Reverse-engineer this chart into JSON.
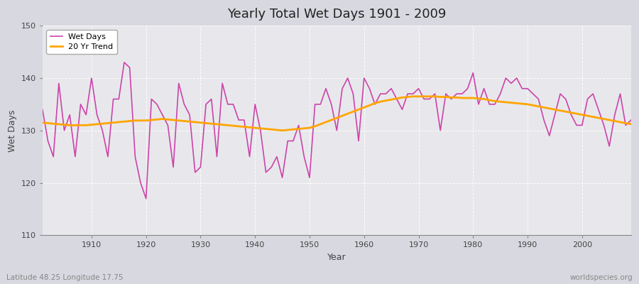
{
  "title": "Yearly Total Wet Days 1901 - 2009",
  "xlabel": "Year",
  "ylabel": "Wet Days",
  "subtitle_left": "Latitude 48.25 Longitude 17.75",
  "subtitle_right": "worldspecies.org",
  "ylim": [
    110,
    150
  ],
  "xlim": [
    1901,
    2009
  ],
  "yticks": [
    110,
    120,
    130,
    140,
    150
  ],
  "xticks": [
    1910,
    1920,
    1930,
    1940,
    1950,
    1960,
    1970,
    1980,
    1990,
    2000
  ],
  "wet_days_color": "#CC44AA",
  "trend_color": "#FFA500",
  "plot_bg_color": "#E8E8EC",
  "outer_bg_color": "#D8D8E0",
  "legend_labels": [
    "Wet Days",
    "20 Yr Trend"
  ],
  "years": [
    1901,
    1902,
    1903,
    1904,
    1905,
    1906,
    1907,
    1908,
    1909,
    1910,
    1911,
    1912,
    1913,
    1914,
    1915,
    1916,
    1917,
    1918,
    1919,
    1920,
    1921,
    1922,
    1923,
    1924,
    1925,
    1926,
    1927,
    1928,
    1929,
    1930,
    1931,
    1932,
    1933,
    1934,
    1935,
    1936,
    1937,
    1938,
    1939,
    1940,
    1941,
    1942,
    1943,
    1944,
    1945,
    1946,
    1947,
    1948,
    1949,
    1950,
    1951,
    1952,
    1953,
    1954,
    1955,
    1956,
    1957,
    1958,
    1959,
    1960,
    1961,
    1962,
    1963,
    1964,
    1965,
    1966,
    1967,
    1968,
    1969,
    1970,
    1971,
    1972,
    1973,
    1974,
    1975,
    1976,
    1977,
    1978,
    1979,
    1980,
    1981,
    1982,
    1983,
    1984,
    1985,
    1986,
    1987,
    1988,
    1989,
    1990,
    1991,
    1992,
    1993,
    1994,
    1995,
    1996,
    1997,
    1998,
    1999,
    2000,
    2001,
    2002,
    2003,
    2004,
    2005,
    2006,
    2007,
    2008,
    2009
  ],
  "wet_days": [
    134,
    128,
    125,
    139,
    130,
    133,
    125,
    135,
    133,
    140,
    133,
    130,
    125,
    136,
    136,
    143,
    142,
    125,
    120,
    117,
    136,
    135,
    133,
    131,
    123,
    139,
    135,
    133,
    122,
    123,
    135,
    136,
    125,
    139,
    135,
    135,
    132,
    132,
    125,
    135,
    130,
    122,
    123,
    125,
    121,
    128,
    128,
    131,
    125,
    121,
    135,
    135,
    138,
    135,
    130,
    138,
    140,
    137,
    128,
    140,
    138,
    135,
    137,
    137,
    138,
    136,
    134,
    137,
    137,
    138,
    136,
    136,
    137,
    130,
    137,
    136,
    137,
    137,
    138,
    141,
    135,
    138,
    135,
    135,
    137,
    140,
    139,
    140,
    138,
    138,
    137,
    136,
    132,
    129,
    133,
    137,
    136,
    133,
    131,
    131,
    136,
    137,
    134,
    131,
    127,
    133,
    137,
    131,
    132
  ],
  "trend": [
    131.5,
    131.4,
    131.3,
    131.2,
    131.1,
    131.0,
    131.0,
    131.0,
    131.0,
    131.1,
    131.2,
    131.3,
    131.4,
    131.5,
    131.6,
    131.7,
    131.8,
    131.9,
    131.9,
    131.9,
    132.0,
    132.1,
    132.2,
    132.1,
    132.0,
    131.9,
    131.8,
    131.7,
    131.6,
    131.5,
    131.4,
    131.3,
    131.2,
    131.1,
    131.0,
    130.9,
    130.8,
    130.7,
    130.6,
    130.5,
    130.4,
    130.3,
    130.2,
    130.1,
    130.0,
    130.1,
    130.2,
    130.3,
    130.4,
    130.5,
    130.8,
    131.2,
    131.6,
    132.0,
    132.4,
    132.8,
    133.2,
    133.6,
    134.0,
    134.4,
    134.8,
    135.2,
    135.5,
    135.7,
    135.9,
    136.1,
    136.3,
    136.4,
    136.5,
    136.5,
    136.5,
    136.5,
    136.5,
    136.4,
    136.4,
    136.3,
    136.3,
    136.2,
    136.2,
    136.2,
    136.1,
    136.0,
    135.8,
    135.6,
    135.5,
    135.4,
    135.3,
    135.2,
    135.1,
    135.0,
    134.8,
    134.6,
    134.4,
    134.2,
    134.0,
    133.8,
    133.6,
    133.4,
    133.2,
    133.0,
    132.8,
    132.6,
    132.4,
    132.2,
    132.0,
    131.8,
    131.6,
    131.4,
    131.2
  ]
}
